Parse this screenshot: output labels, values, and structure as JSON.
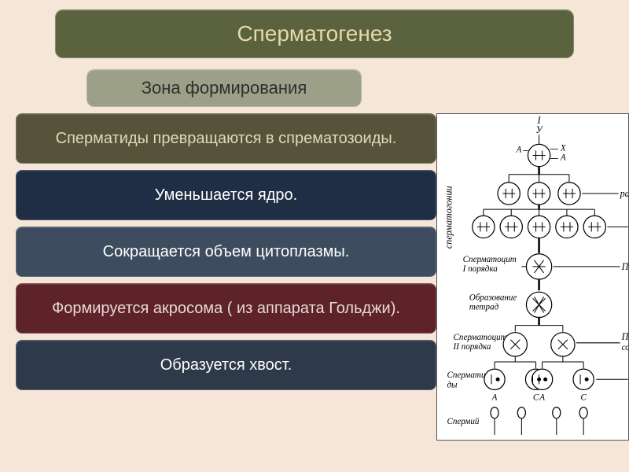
{
  "title": {
    "text": "Сперматогенез",
    "bg": "#5a623e",
    "color": "#e6d9a8"
  },
  "subtitle": {
    "text": "Зона формирования",
    "bg": "#9ca087",
    "color": "#2e2e2e"
  },
  "bars": [
    {
      "text": "Сперматиды  превращаются в спрематозоиды.",
      "bg": "#55543b",
      "color": "#e0d9b8"
    },
    {
      "text": "Уменьшается ядро.",
      "bg": "#1f2e44",
      "color": "#ffffff"
    },
    {
      "text": "Сокращается объем цитоплазмы.",
      "bg": "#3d4d5f",
      "color": "#ffffff"
    },
    {
      "text": "Формируется акросома ( из аппарата Гольджи).",
      "bg": "#5e2328",
      "color": "#e8d8d8"
    },
    {
      "text": "Образуется хвост.",
      "bg": "#2e3a4a",
      "color": "#ffffff"
    }
  ],
  "diagram": {
    "top_chrom": "I\nУ",
    "chrom_labels": [
      "X",
      "A",
      "A"
    ],
    "side_reproduction": "разм",
    "side_spermatogonii": "сперматогонии",
    "spermatocyte1": "Сперматоцит\nI порядка",
    "period": "Перио",
    "tetrad": "Образование\nтетрад",
    "spermatocyte2": "Сперматоциты\nII порядка",
    "period_mat": "Перис\nсозрева",
    "spermatids": "Спермати-\nды",
    "bottom_labels": [
      "A",
      "C",
      "A",
      "C"
    ],
    "spermii": "Спермий"
  }
}
